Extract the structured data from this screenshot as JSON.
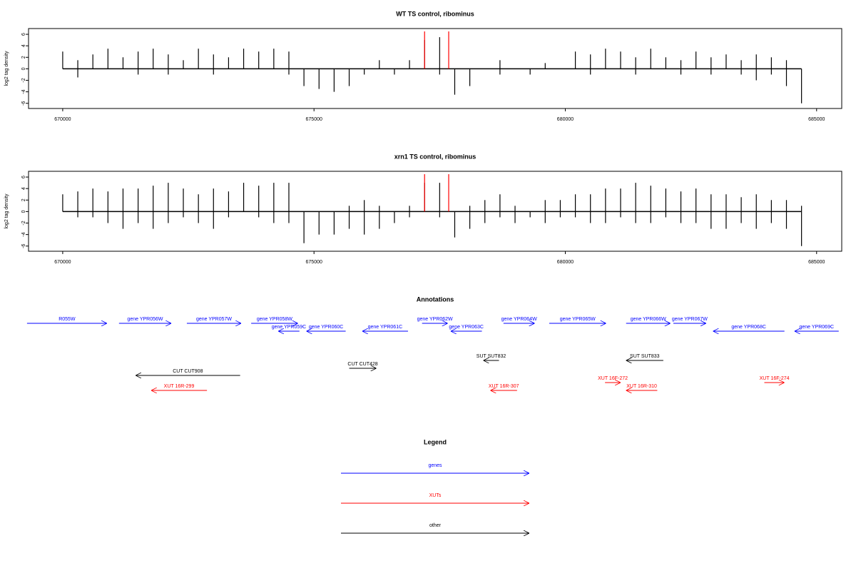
{
  "chart_data": [
    {
      "type": "density",
      "title": "WT TS control, ribominus",
      "ylabel": "log2 tag density",
      "xlim": [
        669320,
        685500
      ],
      "ylim": [
        -6.9,
        7
      ],
      "xticks": [
        670000,
        675000,
        680000,
        685000
      ],
      "yticks": [
        6,
        4,
        2,
        0,
        -2,
        -4,
        -6
      ],
      "x": [
        670000,
        670300,
        670600,
        670900,
        671200,
        671500,
        671800,
        672100,
        672400,
        672700,
        673000,
        673300,
        673600,
        673900,
        674200,
        674500,
        674800,
        675100,
        675400,
        675700,
        676000,
        676300,
        676600,
        676900,
        677200,
        677500,
        677800,
        678100,
        678400,
        678700,
        679000,
        679300,
        679600,
        679900,
        680200,
        680500,
        680800,
        681100,
        681400,
        681700,
        682000,
        682300,
        682600,
        682900,
        683200,
        683500,
        683800,
        684100,
        684400,
        684700
      ],
      "series": [
        {
          "color": "#000000",
          "values": [
            3,
            1.5,
            2.5,
            3.5,
            2,
            3,
            3.5,
            2.5,
            1.5,
            3.5,
            2.5,
            2,
            3.5,
            3,
            3.5,
            3,
            0,
            0,
            0,
            0,
            0,
            1.5,
            0,
            1.5,
            5,
            5.5,
            0,
            0,
            0,
            1.5,
            0,
            0,
            1,
            0,
            3,
            2.5,
            3.5,
            3,
            2,
            3.5,
            2,
            1.5,
            3,
            2,
            2.5,
            1.5,
            2.5,
            2,
            1.5,
            0
          ]
        },
        {
          "color": "#000000",
          "values": [
            0,
            -1.5,
            0,
            0,
            0,
            -1,
            0,
            -1,
            0,
            0,
            -1,
            0,
            0,
            0,
            0,
            -1,
            -3,
            -3.5,
            -4,
            -3,
            -1,
            0,
            -1,
            0,
            0,
            -1,
            -4.5,
            -3,
            0,
            -1,
            0,
            -1,
            0,
            0,
            0,
            -1,
            0,
            0,
            -1,
            0,
            0,
            -1,
            0,
            -1,
            0,
            -1,
            -2,
            -1,
            -3,
            -6
          ]
        }
      ],
      "highlights": {
        "color": "#ff0000",
        "x": [
          677200,
          677680
        ],
        "values": [
          6.5,
          6.5
        ]
      }
    },
    {
      "type": "density",
      "title": "xrn1 TS control, ribominus",
      "ylabel": "log2 tag density",
      "xlim": [
        669320,
        685500
      ],
      "ylim": [
        -6.9,
        7
      ],
      "xticks": [
        670000,
        675000,
        680000,
        685000
      ],
      "yticks": [
        6,
        4,
        2,
        0,
        -2,
        -4,
        -6
      ],
      "x": [
        670000,
        670300,
        670600,
        670900,
        671200,
        671500,
        671800,
        672100,
        672400,
        672700,
        673000,
        673300,
        673600,
        673900,
        674200,
        674500,
        674800,
        675100,
        675400,
        675700,
        676000,
        676300,
        676600,
        676900,
        677200,
        677500,
        677800,
        678100,
        678400,
        678700,
        679000,
        679300,
        679600,
        679900,
        680200,
        680500,
        680800,
        681100,
        681400,
        681700,
        682000,
        682300,
        682600,
        682900,
        683200,
        683500,
        683800,
        684100,
        684400,
        684700
      ],
      "series": [
        {
          "color": "#000000",
          "values": [
            3,
            3.5,
            4,
            3.5,
            4,
            4,
            4.5,
            5,
            4,
            3,
            4,
            3.5,
            5,
            4.5,
            5,
            5,
            0,
            0,
            0,
            1,
            2,
            1,
            0,
            1,
            5,
            5,
            0,
            1,
            2,
            3,
            1,
            0,
            2,
            2,
            3,
            3,
            4,
            4,
            5,
            4.5,
            4,
            3.5,
            4,
            3,
            3,
            2.5,
            3,
            2,
            2,
            1
          ]
        },
        {
          "color": "#000000",
          "values": [
            0,
            -1,
            -1,
            -2,
            -3,
            -2,
            -3,
            -2,
            -1,
            -2,
            -3,
            -1,
            0,
            -1,
            -2,
            -2,
            -5.5,
            -4,
            -4,
            -3,
            -4,
            -3,
            -2,
            -1,
            0,
            -1,
            -4.5,
            -3,
            -2,
            -1,
            -2,
            -1,
            -2,
            -1,
            -1,
            -2,
            -2,
            -1,
            -2,
            -2,
            -1,
            -2,
            -2,
            -3,
            -3,
            -2,
            -3,
            -2,
            -3,
            -6
          ]
        }
      ],
      "highlights": {
        "color": "#ff0000",
        "x": [
          677200,
          677680
        ],
        "values": [
          6.5,
          6.5
        ]
      }
    }
  ],
  "annotations": {
    "title": "Annotations",
    "items": [
      {
        "label": "R055W",
        "color": "#0000ff",
        "start": 669290,
        "end": 670880
      },
      {
        "label": "gene YPR056W",
        "color": "#0000ff",
        "start": 671120,
        "end": 672160
      },
      {
        "label": "gene YPR057W",
        "color": "#0000ff",
        "start": 672470,
        "end": 673550
      },
      {
        "label": "gene YPR058W",
        "color": "#0000ff",
        "start": 673750,
        "end": 674680
      },
      {
        "label": "gene YPR059C",
        "color": "#0000ff",
        "start": 674710,
        "end": 674290
      },
      {
        "label": "gene YPR060C",
        "color": "#0000ff",
        "start": 675630,
        "end": 674850
      },
      {
        "label": "gene YPR061C",
        "color": "#0000ff",
        "start": 676870,
        "end": 675960
      },
      {
        "label": "gene YPR062W",
        "color": "#0000ff",
        "start": 677150,
        "end": 677660
      },
      {
        "label": "gene YPR063C",
        "color": "#0000ff",
        "start": 678340,
        "end": 677720
      },
      {
        "label": "gene YPR064W",
        "color": "#0000ff",
        "start": 678770,
        "end": 679390
      },
      {
        "label": "gene YPR065W",
        "color": "#0000ff",
        "start": 679680,
        "end": 680810
      },
      {
        "label": "gene YPR066W",
        "color": "#0000ff",
        "start": 681210,
        "end": 682090
      },
      {
        "label": "gene YPR067W",
        "color": "#0000ff",
        "start": 682150,
        "end": 682800
      },
      {
        "label": "gene YPR068C",
        "color": "#0000ff",
        "start": 684360,
        "end": 682940
      },
      {
        "label": "gene YPR069C",
        "color": "#0000ff",
        "start": 685440,
        "end": 684560
      },
      {
        "label": "SUT SUT832",
        "color": "#000000",
        "start": 678680,
        "end": 678370
      },
      {
        "label": "SUT SUT833",
        "color": "#000000",
        "start": 681950,
        "end": 681210
      },
      {
        "label": "CUT CUT428",
        "color": "#000000",
        "start": 675700,
        "end": 676240
      },
      {
        "label": "CUT CUT908",
        "color": "#000000",
        "start": 673530,
        "end": 671450
      },
      {
        "label": "XUT 16R-299",
        "color": "#ff0000",
        "start": 672870,
        "end": 671760
      },
      {
        "label": "XUT 16R-307",
        "color": "#ff0000",
        "start": 679040,
        "end": 678510
      },
      {
        "label": "XUT 16F-272",
        "color": "#ff0000",
        "start": 680790,
        "end": 681100
      },
      {
        "label": "XUT 16R-310",
        "color": "#ff0000",
        "start": 681830,
        "end": 681210
      },
      {
        "label": "XUT 16F-274",
        "color": "#ff0000",
        "start": 683960,
        "end": 684360
      }
    ]
  },
  "legend": {
    "title": "Legend",
    "items": [
      {
        "label": "genes",
        "color": "#0000ff"
      },
      {
        "label": "XUTs",
        "color": "#ff0000"
      },
      {
        "label": "other",
        "color": "#000000"
      }
    ]
  }
}
